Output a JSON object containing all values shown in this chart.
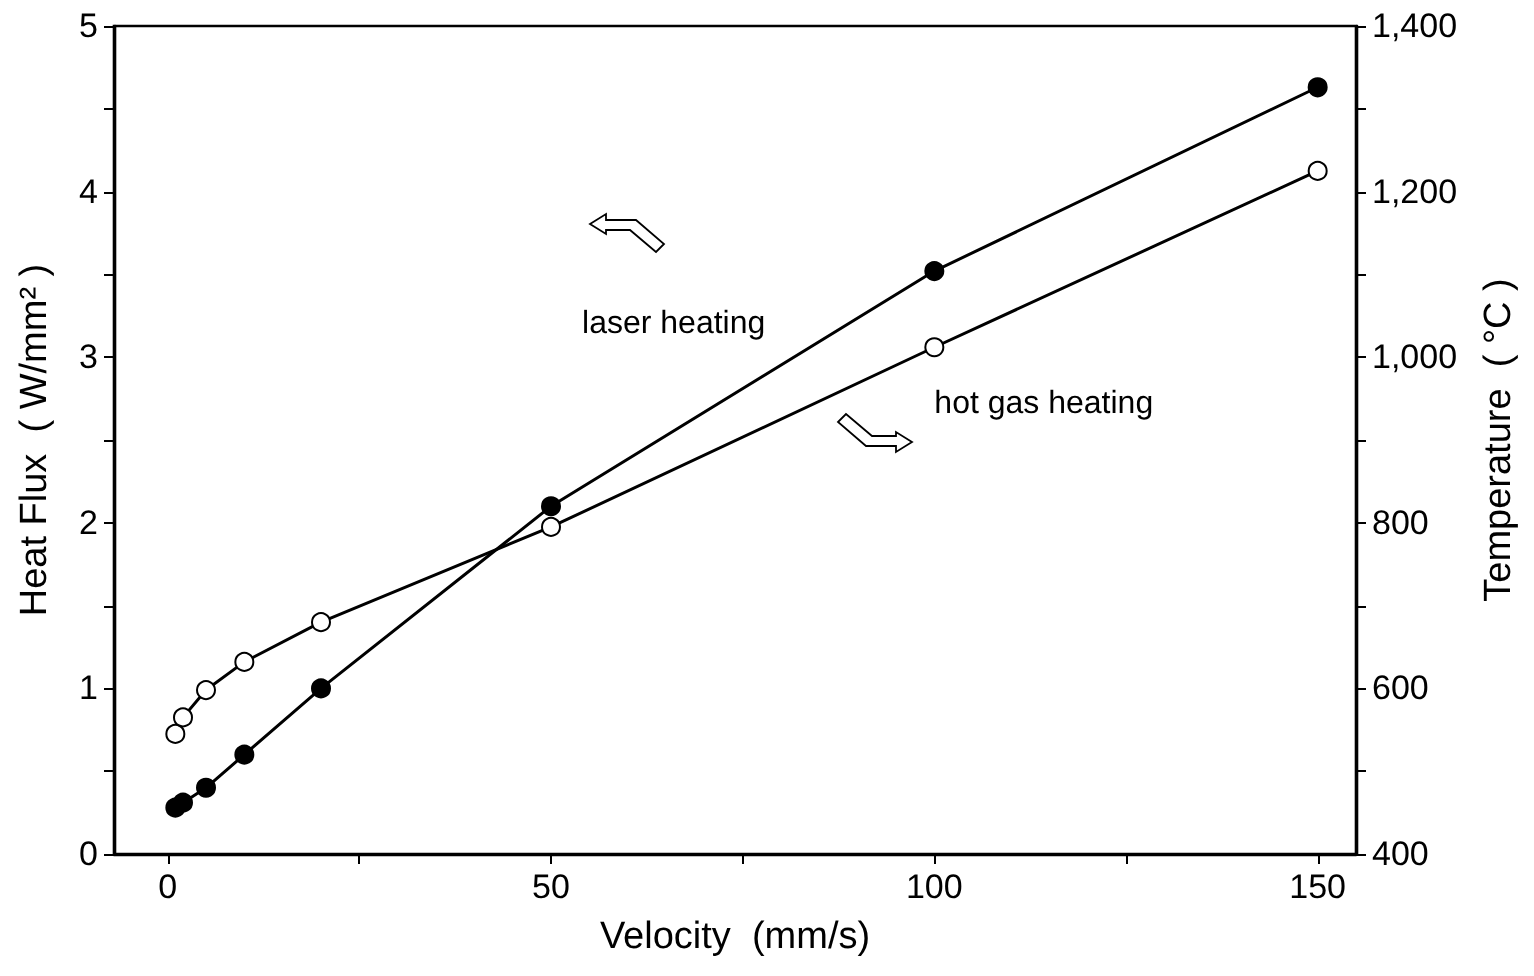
{
  "chart_data": {
    "type": "line",
    "xlabel": "Velocity  (mm/s)",
    "ylabel": "Heat Flux  ( W/mm² )",
    "y2label": "Temperature  ( °C )",
    "x": [
      1,
      2,
      5,
      10,
      20,
      50,
      100,
      150
    ],
    "series": [
      {
        "name": "laser heating",
        "color": "#000000",
        "marker": "circle",
        "values": [
          0.28,
          0.31,
          0.4,
          0.6,
          1.0,
          2.1,
          3.52,
          4.63
        ]
      },
      {
        "name": "hot gas heating",
        "color": "#000000",
        "marker": "open circle",
        "axis": "y2",
        "values": [
          545,
          565,
          598,
          632,
          680,
          795,
          1012,
          1225
        ]
      }
    ],
    "xlim": [
      -7,
      155
    ],
    "xticks": [
      0,
      {
        "value": 25,
        "label": null
      },
      50,
      {
        "value": 75,
        "label": null
      },
      100,
      {
        "value": 125,
        "label": null
      },
      150
    ],
    "ylim": [
      0,
      5
    ],
    "yticks": [
      0,
      {
        "value": 0.5,
        "label": null
      },
      1,
      {
        "value": 1.5,
        "label": null
      },
      2,
      {
        "value": 2.5,
        "label": null
      },
      3,
      {
        "value": 3.5,
        "label": null
      },
      4,
      {
        "value": 4.5,
        "label": null
      },
      5
    ],
    "y2lim": [
      400,
      1400
    ],
    "y2ticks": [
      {
        "value": 400,
        "label": "400"
      },
      {
        "value": 500,
        "label": null
      },
      {
        "value": 600,
        "label": "600"
      },
      {
        "value": 700,
        "label": null
      },
      {
        "value": 800,
        "label": "800"
      },
      {
        "value": 900,
        "label": null
      },
      {
        "value": 1000,
        "label": "1,000"
      },
      {
        "value": 1100,
        "label": null
      },
      {
        "value": 1200,
        "label": "1,200"
      },
      {
        "value": 1300,
        "label": null
      },
      {
        "value": 1400,
        "label": "1,400"
      }
    ],
    "grid": false,
    "legend": false,
    "line_style": "solid"
  }
}
